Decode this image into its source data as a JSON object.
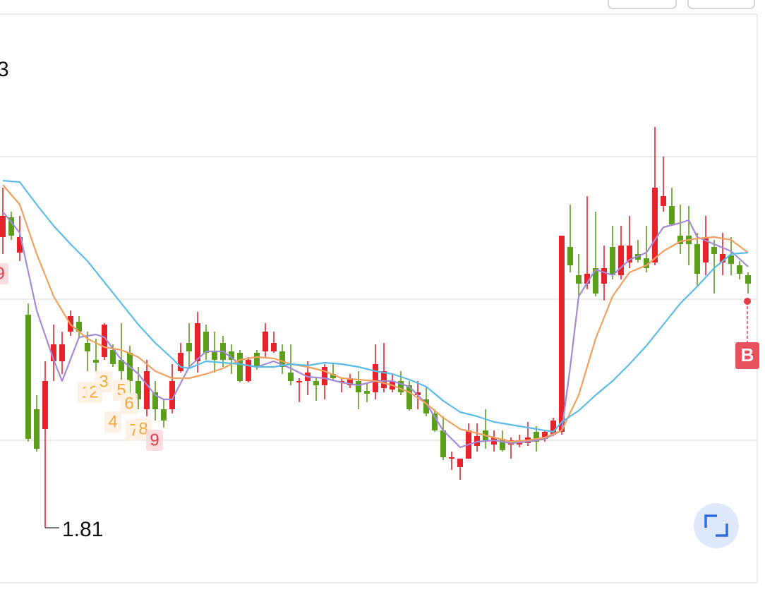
{
  "chart_data": {
    "type": "candlestick",
    "corner_label": "3",
    "xlim": [
      -0.333,
      90
    ],
    "ylim": [
      1.771,
      2.174
    ],
    "yticks": [
      1.872,
      1.972,
      2.073
    ],
    "grid": true,
    "up_color": "#e8222b",
    "down_color": "#5a9e1a",
    "open": [
      2.016,
      2.03,
      2.005,
      1.961,
      1.894,
      1.88,
      1.928,
      1.928,
      1.949,
      1.956,
      1.941,
      1.929,
      1.931,
      1.936,
      1.929,
      1.934,
      1.914,
      1.894,
      1.906,
      1.894,
      1.894,
      1.921,
      1.941,
      1.928,
      1.949,
      1.935,
      1.941,
      1.935,
      1.934,
      1.914,
      1.934,
      1.935,
      1.935,
      1.935,
      1.92,
      1.913,
      1.914,
      1.914,
      1.911,
      1.919,
      1.913,
      1.911,
      1.914,
      1.907,
      1.906,
      1.909,
      1.908,
      1.914,
      1.911,
      1.904,
      1.901,
      1.891,
      1.879,
      1.859,
      1.853,
      1.859,
      1.868,
      1.879,
      1.869,
      1.873,
      1.869,
      1.869,
      1.87,
      1.878,
      1.873,
      1.876,
      1.878,
      2.009,
      1.989,
      1.983,
      1.994,
      1.983,
      2.009,
      1.989,
      1.998,
      2.004,
      2.001,
      1.998,
      2.038,
      2.038,
      2.017,
      2.017,
      2.011,
      1.998,
      2.009,
      1.998,
      2.003,
      1.996,
      1.989
    ],
    "high": [
      2.051,
      2.034,
      2.031,
      1.969,
      1.904,
      1.928,
      1.954,
      1.949,
      1.964,
      1.96,
      1.949,
      1.944,
      1.955,
      1.94,
      1.955,
      1.939,
      1.924,
      1.929,
      1.914,
      1.901,
      1.926,
      1.941,
      1.955,
      1.963,
      1.954,
      1.949,
      1.946,
      1.94,
      1.936,
      1.931,
      1.936,
      1.955,
      1.949,
      1.94,
      1.94,
      1.916,
      1.928,
      1.917,
      1.926,
      1.926,
      1.916,
      1.919,
      1.921,
      1.912,
      1.94,
      1.941,
      1.919,
      1.921,
      1.914,
      1.914,
      1.91,
      1.894,
      1.889,
      1.864,
      1.859,
      1.884,
      1.884,
      1.894,
      1.879,
      1.879,
      1.874,
      1.876,
      1.885,
      1.882,
      1.879,
      1.888,
      2.017,
      2.039,
      2.004,
      2.045,
      2.034,
      2.01,
      2.024,
      2.024,
      2.031,
      2.014,
      2.024,
      2.094,
      2.073,
      2.051,
      2.039,
      2.038,
      2.019,
      2.031,
      2.014,
      2.019,
      2.016,
      1.999,
      1.991
    ],
    "low": [
      2.004,
      2.014,
      1.999,
      1.871,
      1.864,
      1.81,
      1.914,
      1.919,
      1.946,
      1.944,
      1.921,
      1.921,
      1.929,
      1.924,
      1.914,
      1.904,
      1.894,
      1.889,
      1.886,
      1.881,
      1.891,
      1.92,
      1.924,
      1.92,
      1.929,
      1.92,
      1.924,
      1.919,
      1.913,
      1.913,
      1.922,
      1.931,
      1.934,
      1.919,
      1.911,
      1.899,
      1.904,
      1.9,
      1.901,
      1.914,
      1.906,
      1.909,
      1.894,
      1.899,
      1.901,
      1.906,
      1.906,
      1.904,
      1.893,
      1.894,
      1.889,
      1.878,
      1.858,
      1.851,
      1.844,
      1.859,
      1.864,
      1.866,
      1.864,
      1.864,
      1.859,
      1.867,
      1.868,
      1.864,
      1.871,
      1.875,
      1.876,
      1.991,
      1.974,
      1.979,
      1.974,
      1.971,
      1.986,
      1.986,
      1.994,
      1.998,
      1.991,
      1.996,
      2.034,
      2.024,
      2.004,
      1.996,
      1.981,
      1.989,
      1.976,
      1.989,
      1.989,
      1.986,
      1.976
    ],
    "close": [
      2.031,
      2.017,
      2.016,
      1.873,
      1.866,
      1.914,
      1.94,
      1.94,
      1.96,
      1.949,
      1.935,
      1.927,
      1.954,
      1.926,
      1.921,
      1.914,
      1.901,
      1.921,
      1.894,
      1.886,
      1.914,
      1.934,
      1.935,
      1.955,
      1.934,
      1.929,
      1.929,
      1.929,
      1.914,
      1.929,
      1.924,
      1.949,
      1.941,
      1.924,
      1.914,
      1.914,
      1.92,
      1.911,
      1.924,
      1.916,
      1.914,
      1.916,
      1.906,
      1.905,
      1.926,
      1.921,
      1.914,
      1.906,
      1.894,
      1.906,
      1.891,
      1.879,
      1.86,
      1.86,
      1.859,
      1.879,
      1.875,
      1.871,
      1.874,
      1.865,
      1.872,
      1.872,
      1.874,
      1.871,
      1.878,
      1.886,
      2.017,
      1.996,
      1.983,
      1.99,
      1.976,
      1.994,
      1.989,
      2.01,
      2.01,
      2.0,
      1.994,
      2.051,
      2.045,
      2.025,
      2.011,
      2.011,
      1.99,
      2.016,
      2.004,
      2.004,
      1.997,
      1.99,
      1.983
    ],
    "series": [
      {
        "color": "#a58ad8",
        "x": [
          0,
          2,
          4,
          6,
          7,
          9,
          11,
          12,
          14,
          16,
          18,
          19,
          20,
          22,
          24,
          26,
          28,
          30,
          32,
          34,
          36,
          38,
          40,
          42,
          44,
          46,
          48,
          50,
          52,
          54,
          56,
          58,
          60,
          62,
          64,
          66,
          67,
          68,
          70,
          72,
          74,
          76,
          77,
          78,
          80,
          81,
          82,
          84,
          86,
          88
        ],
        "values": [
          2.034,
          2.019,
          1.964,
          1.929,
          1.914,
          1.945,
          1.947,
          1.945,
          1.929,
          1.919,
          1.904,
          1.901,
          1.901,
          1.924,
          1.935,
          1.935,
          1.926,
          1.924,
          1.928,
          1.923,
          1.917,
          1.916,
          1.913,
          1.911,
          1.914,
          1.914,
          1.91,
          1.898,
          1.879,
          1.867,
          1.871,
          1.872,
          1.87,
          1.871,
          1.873,
          1.879,
          1.924,
          1.974,
          1.993,
          1.989,
          2.0,
          2.005,
          2.014,
          2.023,
          2.026,
          2.028,
          2.016,
          2.011,
          2.006,
          1.995
        ]
      },
      {
        "color": "#f0a060",
        "x": [
          0,
          2,
          4,
          6,
          8,
          10,
          12,
          14,
          16,
          18,
          20,
          22,
          24,
          26,
          28,
          30,
          32,
          34,
          36,
          38,
          40,
          42,
          44,
          46,
          48,
          50,
          52,
          54,
          56,
          58,
          60,
          62,
          64,
          66,
          68,
          70,
          72,
          74,
          76,
          78,
          80,
          82,
          84,
          86,
          88
        ],
        "values": [
          2.053,
          2.039,
          2.004,
          1.974,
          1.954,
          1.944,
          1.938,
          1.936,
          1.931,
          1.921,
          1.916,
          1.916,
          1.919,
          1.923,
          1.929,
          1.931,
          1.93,
          1.926,
          1.924,
          1.921,
          1.916,
          1.915,
          1.914,
          1.911,
          1.906,
          1.898,
          1.888,
          1.88,
          1.877,
          1.874,
          1.871,
          1.872,
          1.874,
          1.879,
          1.904,
          1.944,
          1.974,
          1.991,
          1.996,
          2.006,
          2.013,
          2.015,
          2.016,
          2.014,
          2.005
        ]
      },
      {
        "color": "#5bbbe8",
        "x": [
          0,
          2,
          4,
          6,
          8,
          10,
          12,
          14,
          16,
          18,
          20,
          21,
          22,
          24,
          26,
          28,
          30,
          32,
          34,
          36,
          38,
          40,
          42,
          44,
          46,
          48,
          50,
          52,
          54,
          56,
          58,
          60,
          62,
          64,
          65,
          66,
          68,
          70,
          72,
          74,
          76,
          78,
          80,
          82,
          84,
          86,
          88
        ],
        "values": [
          2.056,
          2.055,
          2.039,
          2.024,
          2.011,
          1.999,
          1.984,
          1.969,
          1.954,
          1.941,
          1.93,
          1.924,
          1.923,
          1.928,
          1.927,
          1.926,
          1.924,
          1.924,
          1.926,
          1.925,
          1.927,
          1.926,
          1.924,
          1.921,
          1.919,
          1.915,
          1.91,
          1.9,
          1.892,
          1.889,
          1.885,
          1.883,
          1.881,
          1.879,
          1.878,
          1.885,
          1.893,
          1.904,
          1.914,
          1.926,
          1.939,
          1.954,
          1.969,
          1.981,
          1.994,
          2.004,
          2.005
        ]
      }
    ],
    "td_labels": [
      "9",
      "1",
      "2",
      "3",
      "4",
      "5",
      "6",
      "7",
      "8",
      "9"
    ],
    "signal": "B"
  }
}
